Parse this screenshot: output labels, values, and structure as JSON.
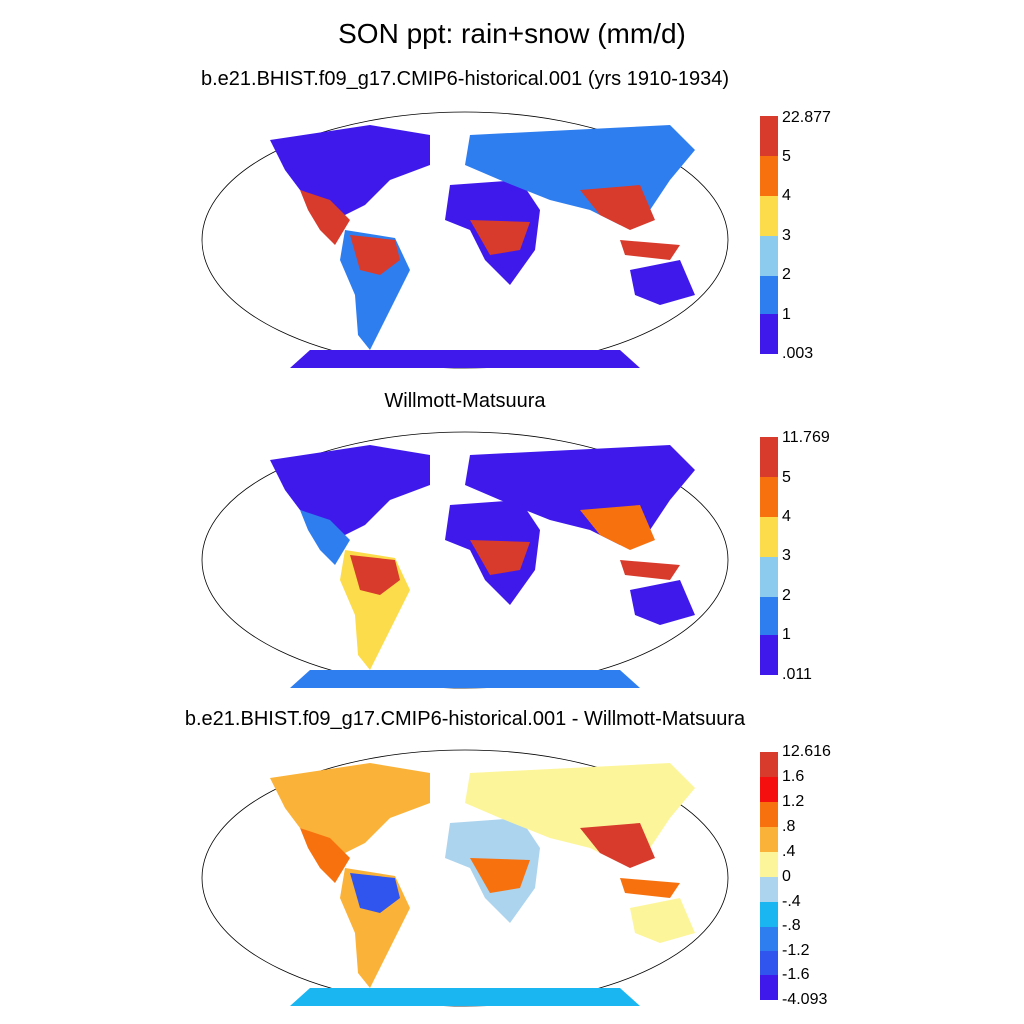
{
  "title": "SON ppt: rain+snow (mm/d)",
  "panels": [
    {
      "title": "b.e21.BHIST.f09_g17.CMIP6-historical.001 (yrs 1910-1934)",
      "colorbar": {
        "labels": [
          "22.877",
          "5",
          "4",
          "3",
          "2",
          "1",
          ".003"
        ],
        "colors": [
          "#d83a2c",
          "#f7720f",
          "#fcdc4a",
          "#8ccbed",
          "#2f7ef0",
          "#3f19ec"
        ]
      }
    },
    {
      "title": "Willmott-Matsuura",
      "colorbar": {
        "labels": [
          "11.769",
          "5",
          "4",
          "3",
          "2",
          "1",
          ".011"
        ],
        "colors": [
          "#d83a2c",
          "#f7720f",
          "#fcdc4a",
          "#8ccbed",
          "#2f7ef0",
          "#3f19ec"
        ]
      }
    },
    {
      "title": "b.e21.BHIST.f09_g17.CMIP6-historical.001 - Willmott-Matsuura",
      "colorbar": {
        "labels": [
          "12.616",
          "1.6",
          "1.2",
          ".8",
          ".4",
          "0",
          "-.4",
          "-.8",
          "-1.2",
          "-1.6",
          "-4.093"
        ],
        "colors": [
          "#d83a2c",
          "#f50f0f",
          "#f7720f",
          "#fbb238",
          "#fdf59a",
          "#acd4ee",
          "#1ab6f2",
          "#2f7ef0",
          "#2f55ee",
          "#3a31dc",
          "#3f19ec"
        ]
      }
    }
  ]
}
